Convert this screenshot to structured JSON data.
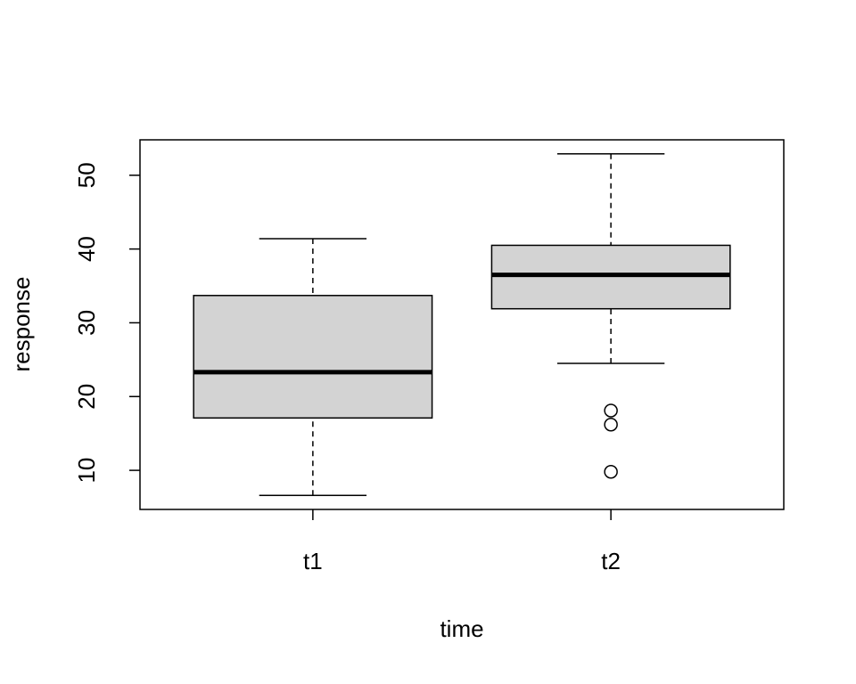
{
  "chart_data": {
    "type": "box",
    "x_label": "time",
    "y_label": "response",
    "categories": [
      "t1",
      "t2"
    ],
    "boxes": [
      {
        "whisker_low": 6.6,
        "q1": 17.1,
        "median": 23.3,
        "q3": 33.7,
        "whisker_high": 41.4,
        "outliers": []
      },
      {
        "whisker_low": 24.5,
        "q1": 31.9,
        "median": 36.5,
        "q3": 40.5,
        "whisker_high": 52.9,
        "outliers": [
          18.1,
          16.2,
          9.8
        ]
      }
    ],
    "color": "#d3d3d3",
    "ylim": [
      4.7,
      54.8
    ],
    "yticks": [
      10,
      20,
      30,
      40,
      50
    ]
  }
}
